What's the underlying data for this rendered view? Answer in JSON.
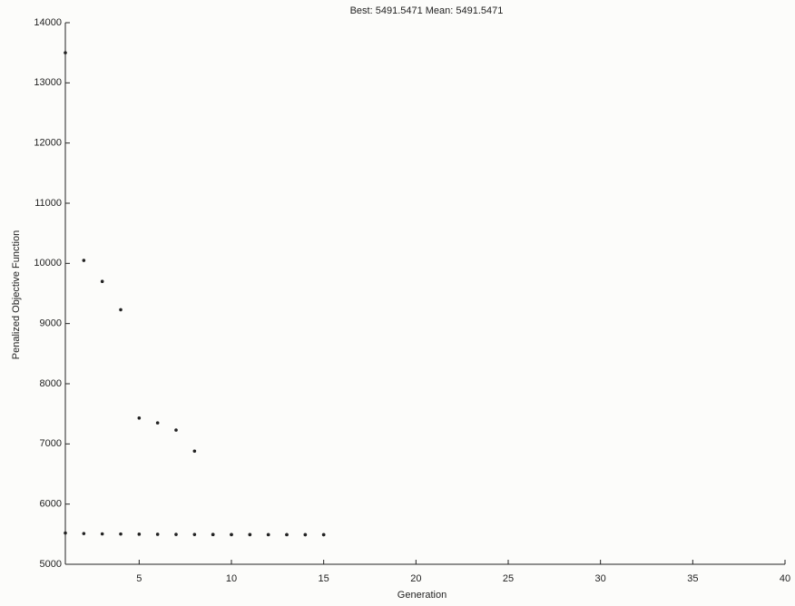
{
  "chart_data": {
    "type": "scatter",
    "title": "Best: 5491.5471 Mean: 5491.5471",
    "x_label": "Generation",
    "y_label": "Penalized Objective Function",
    "x": [
      1,
      2,
      3,
      4,
      5,
      6,
      7,
      8,
      9,
      10,
      11,
      12,
      13,
      14,
      15
    ],
    "series": [
      {
        "color": "#222222",
        "values": [
          13500,
          10050,
          9700,
          9230,
          7430,
          7350,
          7230,
          6880,
          5494,
          5493,
          5493,
          5492,
          5492,
          5491.5,
          5491.5
        ]
      },
      {
        "color": "#222222",
        "values": [
          5520,
          5510,
          5505,
          5503,
          5500,
          5498,
          5496,
          5495,
          5494,
          5493,
          5493,
          5492,
          5492,
          5491.5,
          5491.5
        ]
      }
    ],
    "xlim": [
      1,
      40
    ],
    "xticks": [
      5,
      10,
      15,
      20,
      25,
      30,
      35,
      40
    ],
    "ylim": [
      5000,
      14000
    ],
    "yticks": [
      5000,
      6000,
      7000,
      8000,
      9000,
      10000,
      11000,
      12000,
      13000,
      14000
    ],
    "grid": false
  }
}
